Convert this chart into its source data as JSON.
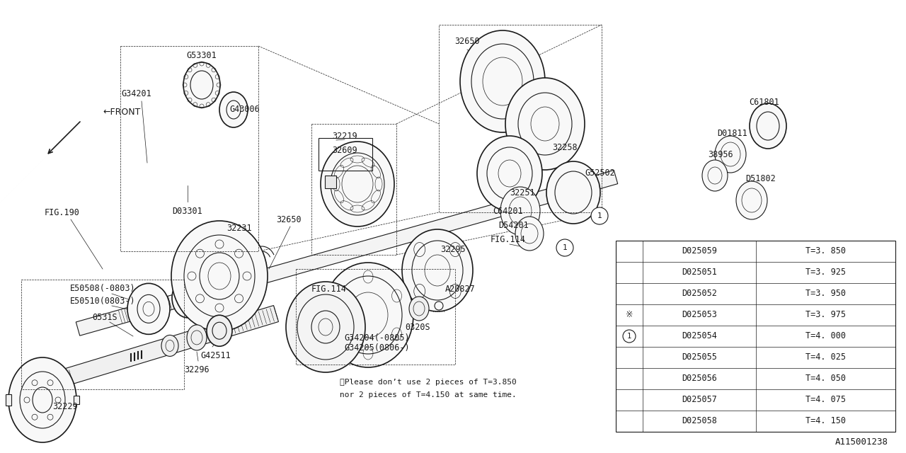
{
  "bg_color": "#ffffff",
  "line_color": "#1a1a1a",
  "fig_width": 12.8,
  "fig_height": 6.4,
  "diagram_id": "A115001238",
  "table": {
    "rows": [
      {
        "part": "D025059",
        "thickness": "T=3. 850",
        "mark": ""
      },
      {
        "part": "D025051",
        "thickness": "T=3. 925",
        "mark": ""
      },
      {
        "part": "D025052",
        "thickness": "T=3. 950",
        "mark": ""
      },
      {
        "part": "D025053",
        "thickness": "T=3. 975",
        "mark": "x"
      },
      {
        "part": "D025054",
        "thickness": "T=4. 000",
        "mark": "1"
      },
      {
        "part": "D025055",
        "thickness": "T=4. 025",
        "mark": ""
      },
      {
        "part": "D025056",
        "thickness": "T=4. 050",
        "mark": ""
      },
      {
        "part": "D025057",
        "thickness": "T=4. 075",
        "mark": ""
      },
      {
        "part": "D025058",
        "thickness": "T=4. 150",
        "mark": ""
      }
    ]
  },
  "note_line1": "※Please don’t use 2 pieces of T=3.850",
  "note_line2": "nor 2 pieces of T=4.150 at same time."
}
